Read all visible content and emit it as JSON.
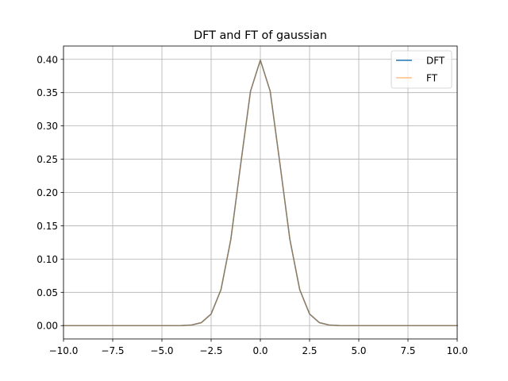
{
  "chart_data": {
    "type": "line",
    "title": "DFT and FT of gaussian",
    "xlabel": "",
    "ylabel": "",
    "xlim": [
      -10,
      10
    ],
    "ylim": [
      -0.02,
      0.42
    ],
    "xticks": [
      -10,
      -7.5,
      -5,
      -2.5,
      0,
      2.5,
      5,
      7.5,
      10
    ],
    "xtick_labels": [
      "−10.0",
      "−7.5",
      "−5.0",
      "−2.5",
      "0.0",
      "2.5",
      "5.0",
      "7.5",
      "10.0"
    ],
    "yticks": [
      0,
      0.05,
      0.1,
      0.15,
      0.2,
      0.25,
      0.3,
      0.35,
      0.4
    ],
    "ytick_labels": [
      "0.00",
      "0.05",
      "0.10",
      "0.15",
      "0.20",
      "0.25",
      "0.30",
      "0.35",
      "0.40"
    ],
    "grid": true,
    "legend_position": "top-right",
    "series": [
      {
        "name": "DFT",
        "color": "#1f77b4",
        "x": [
          -10,
          -9.5,
          -9,
          -8.5,
          -8,
          -7.5,
          -7,
          -6.5,
          -6,
          -5.5,
          -5,
          -4.5,
          -4,
          -3.5,
          -3,
          -2.5,
          -2,
          -1.5,
          -1,
          -0.5,
          0,
          0.5,
          1,
          1.5,
          2,
          2.5,
          3,
          3.5,
          4,
          4.5,
          5,
          5.5,
          6,
          6.5,
          7,
          7.5,
          8,
          8.5,
          9,
          9.5,
          10
        ],
        "y": [
          0,
          0,
          0,
          0,
          0,
          0,
          0,
          0,
          0,
          0,
          0,
          0,
          0.0001,
          0.0009,
          0.0044,
          0.0175,
          0.054,
          0.1295,
          0.242,
          0.3521,
          0.3989,
          0.3521,
          0.242,
          0.1295,
          0.054,
          0.0175,
          0.0044,
          0.0009,
          0.0001,
          0,
          0,
          0,
          0,
          0,
          0,
          0,
          0,
          0,
          0,
          0,
          0
        ]
      },
      {
        "name": "FT",
        "color": "#ff7f0e",
        "x": [
          -10,
          -9.5,
          -9,
          -8.5,
          -8,
          -7.5,
          -7,
          -6.5,
          -6,
          -5.5,
          -5,
          -4.5,
          -4,
          -3.5,
          -3,
          -2.5,
          -2,
          -1.5,
          -1,
          -0.5,
          0,
          0.5,
          1,
          1.5,
          2,
          2.5,
          3,
          3.5,
          4,
          4.5,
          5,
          5.5,
          6,
          6.5,
          7,
          7.5,
          8,
          8.5,
          9,
          9.5,
          10
        ],
        "y": [
          0,
          0,
          0,
          0,
          0,
          0,
          0,
          0,
          0,
          0,
          0,
          0,
          0.0001,
          0.0009,
          0.0044,
          0.0175,
          0.054,
          0.1295,
          0.242,
          0.3521,
          0.3989,
          0.3521,
          0.242,
          0.1295,
          0.054,
          0.0175,
          0.0044,
          0.0009,
          0.0001,
          0,
          0,
          0,
          0,
          0,
          0,
          0,
          0,
          0,
          0,
          0,
          0
        ]
      }
    ]
  }
}
